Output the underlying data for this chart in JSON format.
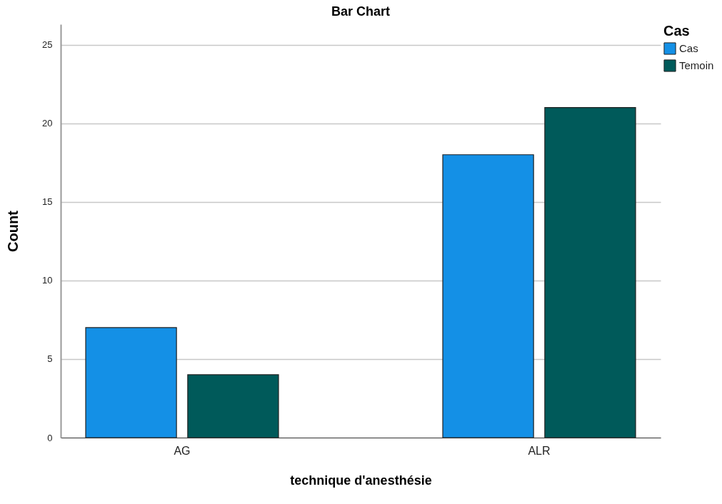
{
  "chart_data": {
    "type": "bar",
    "title": "Bar Chart",
    "xlabel": "technique d'anesthésie",
    "ylabel": "Count",
    "legend_title": "Cas",
    "categories": [
      "AG",
      "ALR"
    ],
    "series": [
      {
        "name": "Cas",
        "color": "#1490e6",
        "values": [
          7,
          18
        ]
      },
      {
        "name": "Temoin",
        "color": "#005a5a",
        "values": [
          4,
          21
        ]
      }
    ],
    "ylim": [
      0,
      26.3
    ],
    "yticks": [
      0,
      5,
      10,
      15,
      20,
      25
    ],
    "grid": "y",
    "legend": "top right"
  }
}
